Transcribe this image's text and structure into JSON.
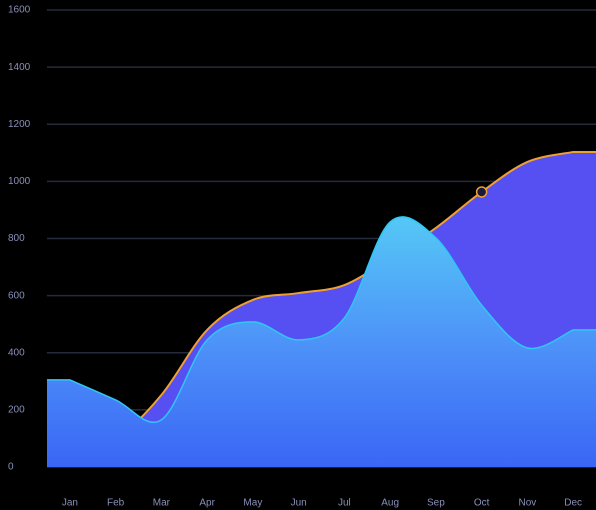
{
  "chart_data": {
    "type": "area",
    "categories": [
      "Jan",
      "Feb",
      "Mar",
      "Apr",
      "May",
      "Jun",
      "Jul",
      "Aug",
      "Sep",
      "Oct",
      "Nov",
      "Dec"
    ],
    "series": [
      {
        "color": "#f0a030",
        "fill": "#5650f2",
        "values": [
          25,
          95,
          252,
          480,
          585,
          609,
          637,
          732,
          837,
          963,
          1068,
          1103
        ]
      },
      {
        "color": "#2ec8f5",
        "fill": "#4aa8f8",
        "values": [
          305,
          235,
          165,
          445,
          508,
          445,
          522,
          858,
          802,
          567,
          417,
          480
        ]
      }
    ],
    "ylim": [
      0,
      1600
    ],
    "yticks": [
      0,
      200,
      400,
      600,
      800,
      1000,
      1200,
      1400,
      1600
    ],
    "grid": true
  }
}
